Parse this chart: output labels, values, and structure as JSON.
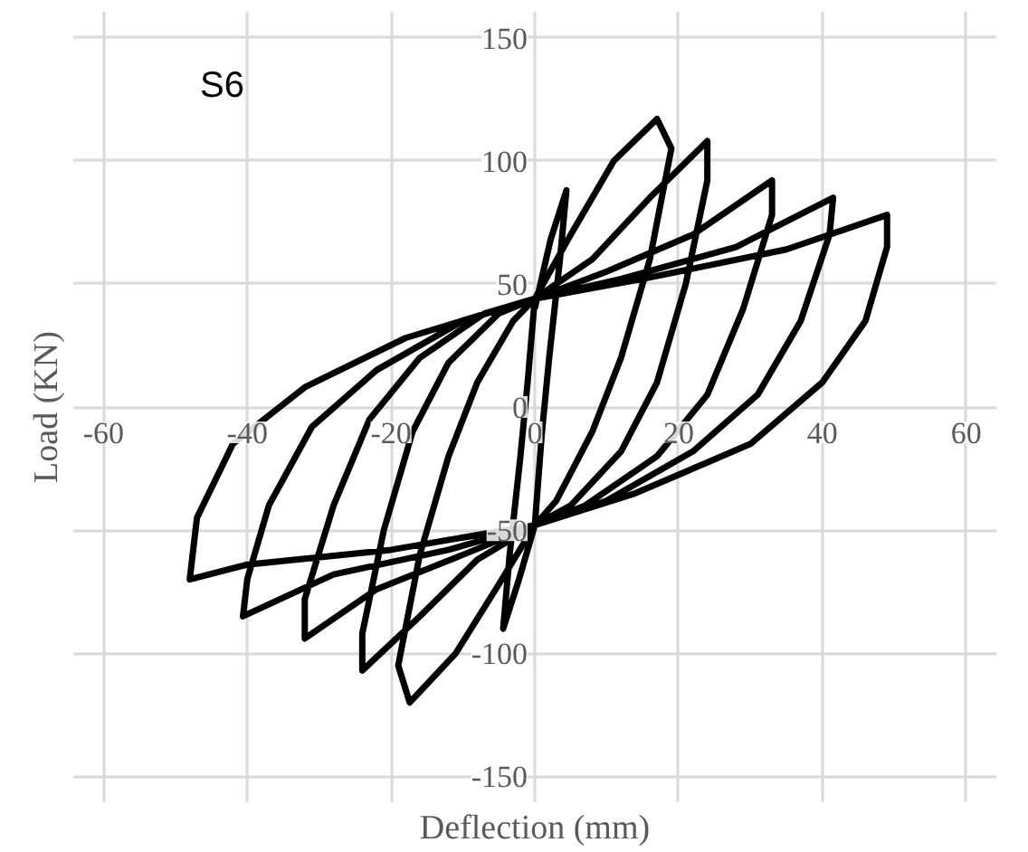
{
  "chart_data": {
    "type": "line",
    "xlabel": "Deflection (mm)",
    "ylabel": "Load (KN)",
    "annotations": [
      "S6"
    ],
    "xlim": [
      -60,
      60
    ],
    "ylim": [
      -150,
      150
    ],
    "xticks": [
      -60,
      -40,
      -20,
      0,
      20,
      40,
      60
    ],
    "yticks": [
      -150,
      -100,
      -50,
      0,
      50,
      100,
      150
    ],
    "grid": true,
    "series": [
      {
        "color": "#000000",
        "x": [
          0,
          2.2,
          4.4,
          3.5,
          2,
          1,
          0,
          -2.2,
          -4.4,
          -3.5,
          -2,
          -1,
          0,
          5,
          11,
          17,
          19,
          16,
          12,
          8,
          3,
          0,
          -5,
          -11,
          -17.4,
          -19,
          -16,
          -12,
          -8,
          -3,
          0,
          8,
          16,
          24,
          24,
          21,
          17,
          12,
          5,
          0,
          -8,
          -16,
          -24,
          -24,
          -21,
          -17,
          -12,
          -5,
          0,
          10,
          22,
          33,
          33,
          29,
          24,
          17,
          7,
          0,
          -10,
          -22,
          -32,
          -32,
          -28,
          -23,
          -16,
          -7,
          0,
          12,
          28,
          41.5,
          41,
          37,
          31,
          22,
          10,
          0,
          -12,
          -28,
          -40.6,
          -40,
          -37,
          -31,
          -22,
          -10,
          0,
          15,
          35,
          49,
          49,
          46,
          40,
          30,
          14,
          0,
          -20,
          -40,
          -48,
          -47,
          -42,
          -32,
          -18,
          0
        ],
        "values": [
          40,
          68,
          88,
          60,
          20,
          -10,
          -48,
          -70,
          -90,
          -60,
          -20,
          10,
          44,
          70,
          100,
          117,
          105,
          60,
          20,
          -10,
          -38,
          -48,
          -72,
          -100,
          -120,
          -105,
          -60,
          -20,
          10,
          35,
          44,
          60,
          85,
          108,
          92,
          50,
          10,
          -18,
          -40,
          -48,
          -62,
          -85,
          -107,
          -92,
          -50,
          -10,
          18,
          38,
          44,
          55,
          70,
          92,
          78,
          40,
          5,
          -20,
          -40,
          -48,
          -60,
          -74,
          -94,
          -78,
          -40,
          -5,
          20,
          38,
          44,
          52,
          65,
          85,
          70,
          35,
          5,
          -18,
          -38,
          -48,
          -58,
          -68,
          -85,
          -70,
          -40,
          -8,
          15,
          35,
          44,
          52,
          64,
          78,
          65,
          35,
          10,
          -15,
          -35,
          -48,
          -58,
          -64,
          -70,
          -45,
          -15,
          8,
          28,
          44
        ]
      }
    ]
  }
}
